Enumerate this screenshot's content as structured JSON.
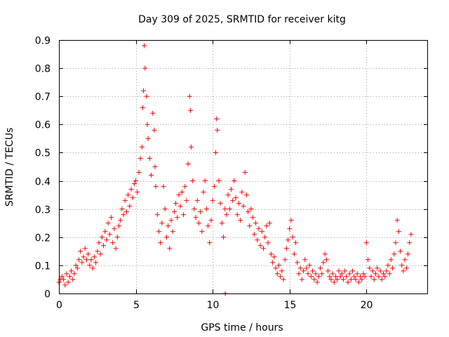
{
  "chart_data": {
    "type": "scatter",
    "title": "Day 309 of 2025, SRMTID for receiver kitg",
    "xlabel": "GPS time / hours",
    "ylabel": "SRMTID / TECUs",
    "xlim": [
      0,
      24
    ],
    "ylim": [
      0,
      0.9
    ],
    "xticks": [
      0,
      5,
      10,
      15,
      20
    ],
    "xtick_labels": [
      "0",
      "5",
      "10",
      "15",
      "20"
    ],
    "yticks": [
      0,
      0.1,
      0.2,
      0.3,
      0.4,
      0.5,
      0.6,
      0.7,
      0.8,
      0.9
    ],
    "ytick_labels": [
      "0",
      "0.1",
      "0.2",
      "0.3",
      "0.4",
      "0.5",
      "0.6",
      "0.7",
      "0.8",
      "0.9"
    ],
    "grid": true,
    "marker": "plus",
    "color": "#ff0000",
    "series": [
      {
        "name": "SRMTID",
        "points": [
          [
            0.0,
            0.04
          ],
          [
            0.1,
            0.05
          ],
          [
            0.2,
            0.06
          ],
          [
            0.3,
            0.05
          ],
          [
            0.4,
            0.03
          ],
          [
            0.5,
            0.07
          ],
          [
            0.6,
            0.04
          ],
          [
            0.7,
            0.06
          ],
          [
            0.8,
            0.08
          ],
          [
            0.9,
            0.05
          ],
          [
            1.0,
            0.07
          ],
          [
            1.1,
            0.1
          ],
          [
            1.2,
            0.09
          ],
          [
            1.3,
            0.12
          ],
          [
            1.4,
            0.15
          ],
          [
            1.5,
            0.11
          ],
          [
            1.6,
            0.13
          ],
          [
            1.7,
            0.16
          ],
          [
            1.8,
            0.12
          ],
          [
            1.9,
            0.14
          ],
          [
            2.0,
            0.1
          ],
          [
            2.1,
            0.12
          ],
          [
            2.2,
            0.09
          ],
          [
            2.3,
            0.13
          ],
          [
            2.4,
            0.11
          ],
          [
            2.5,
            0.15
          ],
          [
            2.6,
            0.18
          ],
          [
            2.7,
            0.14
          ],
          [
            2.8,
            0.2
          ],
          [
            2.9,
            0.17
          ],
          [
            3.0,
            0.22
          ],
          [
            3.1,
            0.19
          ],
          [
            3.2,
            0.25
          ],
          [
            3.3,
            0.21
          ],
          [
            3.4,
            0.27
          ],
          [
            3.5,
            0.18
          ],
          [
            3.6,
            0.23
          ],
          [
            3.7,
            0.16
          ],
          [
            3.8,
            0.2
          ],
          [
            3.9,
            0.24
          ],
          [
            4.0,
            0.26
          ],
          [
            4.1,
            0.3
          ],
          [
            4.2,
            0.28
          ],
          [
            4.3,
            0.33
          ],
          [
            4.4,
            0.29
          ],
          [
            4.5,
            0.35
          ],
          [
            4.6,
            0.31
          ],
          [
            4.7,
            0.37
          ],
          [
            4.8,
            0.34
          ],
          [
            4.9,
            0.39
          ],
          [
            5.0,
            0.4
          ],
          [
            5.1,
            0.36
          ],
          [
            5.2,
            0.43
          ],
          [
            5.3,
            0.48
          ],
          [
            5.4,
            0.52
          ],
          [
            5.45,
            0.66
          ],
          [
            5.5,
            0.72
          ],
          [
            5.55,
            0.88
          ],
          [
            5.6,
            0.8
          ],
          [
            5.7,
            0.7
          ],
          [
            5.75,
            0.6
          ],
          [
            5.8,
            0.55
          ],
          [
            5.9,
            0.48
          ],
          [
            6.0,
            0.42
          ],
          [
            6.1,
            0.64
          ],
          [
            6.2,
            0.58
          ],
          [
            6.25,
            0.45
          ],
          [
            6.3,
            0.38
          ],
          [
            6.4,
            0.28
          ],
          [
            6.5,
            0.22
          ],
          [
            6.6,
            0.18
          ],
          [
            6.7,
            0.25
          ],
          [
            6.8,
            0.38
          ],
          [
            6.9,
            0.3
          ],
          [
            7.0,
            0.2
          ],
          [
            7.1,
            0.24
          ],
          [
            7.2,
            0.16
          ],
          [
            7.3,
            0.26
          ],
          [
            7.4,
            0.22
          ],
          [
            7.5,
            0.29
          ],
          [
            7.6,
            0.32
          ],
          [
            7.7,
            0.27
          ],
          [
            7.8,
            0.35
          ],
          [
            7.9,
            0.31
          ],
          [
            8.0,
            0.36
          ],
          [
            8.1,
            0.28
          ],
          [
            8.2,
            0.38
          ],
          [
            8.3,
            0.33
          ],
          [
            8.4,
            0.46
          ],
          [
            8.5,
            0.7
          ],
          [
            8.55,
            0.65
          ],
          [
            8.6,
            0.52
          ],
          [
            8.7,
            0.4
          ],
          [
            8.8,
            0.3
          ],
          [
            8.9,
            0.27
          ],
          [
            9.0,
            0.33
          ],
          [
            9.1,
            0.25
          ],
          [
            9.2,
            0.29
          ],
          [
            9.3,
            0.22
          ],
          [
            9.4,
            0.36
          ],
          [
            9.5,
            0.4
          ],
          [
            9.6,
            0.3
          ],
          [
            9.7,
            0.24
          ],
          [
            9.8,
            0.18
          ],
          [
            9.9,
            0.26
          ],
          [
            10.0,
            0.33
          ],
          [
            10.1,
            0.38
          ],
          [
            10.2,
            0.5
          ],
          [
            10.25,
            0.62
          ],
          [
            10.3,
            0.58
          ],
          [
            10.4,
            0.4
          ],
          [
            10.5,
            0.32
          ],
          [
            10.6,
            0.25
          ],
          [
            10.7,
            0.2
          ],
          [
            10.8,
            0.3
          ],
          [
            10.82,
            0.0
          ],
          [
            10.9,
            0.28
          ],
          [
            11.0,
            0.35
          ],
          [
            11.1,
            0.3
          ],
          [
            11.2,
            0.37
          ],
          [
            11.3,
            0.33
          ],
          [
            11.4,
            0.4
          ],
          [
            11.5,
            0.34
          ],
          [
            11.6,
            0.28
          ],
          [
            11.7,
            0.32
          ],
          [
            11.8,
            0.26
          ],
          [
            11.9,
            0.36
          ],
          [
            12.0,
            0.31
          ],
          [
            12.1,
            0.43
          ],
          [
            12.2,
            0.35
          ],
          [
            12.3,
            0.29
          ],
          [
            12.4,
            0.24
          ],
          [
            12.5,
            0.3
          ],
          [
            12.6,
            0.27
          ],
          [
            12.7,
            0.21
          ],
          [
            12.8,
            0.25
          ],
          [
            12.9,
            0.19
          ],
          [
            13.0,
            0.23
          ],
          [
            13.1,
            0.17
          ],
          [
            13.2,
            0.22
          ],
          [
            13.3,
            0.16
          ],
          [
            13.4,
            0.2
          ],
          [
            13.5,
            0.24
          ],
          [
            13.6,
            0.18
          ],
          [
            13.7,
            0.25
          ],
          [
            13.8,
            0.14
          ],
          [
            13.9,
            0.11
          ],
          [
            14.0,
            0.13
          ],
          [
            14.1,
            0.09
          ],
          [
            14.2,
            0.07
          ],
          [
            14.3,
            0.1
          ],
          [
            14.4,
            0.06
          ],
          [
            14.5,
            0.08
          ],
          [
            14.6,
            0.05
          ],
          [
            14.7,
            0.12
          ],
          [
            14.8,
            0.16
          ],
          [
            14.9,
            0.19
          ],
          [
            15.0,
            0.23
          ],
          [
            15.1,
            0.26
          ],
          [
            15.2,
            0.2
          ],
          [
            15.3,
            0.14
          ],
          [
            15.4,
            0.18
          ],
          [
            15.5,
            0.11
          ],
          [
            15.6,
            0.07
          ],
          [
            15.7,
            0.09
          ],
          [
            15.8,
            0.05
          ],
          [
            15.9,
            0.08
          ],
          [
            16.0,
            0.12
          ],
          [
            16.1,
            0.09
          ],
          [
            16.2,
            0.07
          ],
          [
            16.3,
            0.1
          ],
          [
            16.4,
            0.06
          ],
          [
            16.5,
            0.08
          ],
          [
            16.6,
            0.05
          ],
          [
            16.7,
            0.07
          ],
          [
            16.8,
            0.04
          ],
          [
            16.9,
            0.06
          ],
          [
            17.0,
            0.09
          ],
          [
            17.1,
            0.07
          ],
          [
            17.2,
            0.11
          ],
          [
            17.3,
            0.14
          ],
          [
            17.4,
            0.12
          ],
          [
            17.5,
            0.08
          ],
          [
            17.6,
            0.06
          ],
          [
            17.7,
            0.05
          ],
          [
            17.8,
            0.07
          ],
          [
            17.9,
            0.04
          ],
          [
            18.0,
            0.06
          ],
          [
            18.1,
            0.05
          ],
          [
            18.2,
            0.08
          ],
          [
            18.3,
            0.06
          ],
          [
            18.4,
            0.07
          ],
          [
            18.5,
            0.05
          ],
          [
            18.6,
            0.08
          ],
          [
            18.7,
            0.06
          ],
          [
            18.8,
            0.04
          ],
          [
            18.9,
            0.07
          ],
          [
            19.0,
            0.05
          ],
          [
            19.1,
            0.08
          ],
          [
            19.2,
            0.06
          ],
          [
            19.3,
            0.05
          ],
          [
            19.4,
            0.07
          ],
          [
            19.5,
            0.04
          ],
          [
            19.6,
            0.06
          ],
          [
            19.7,
            0.05
          ],
          [
            19.8,
            0.07
          ],
          [
            19.9,
            0.06
          ],
          [
            20.0,
            0.18
          ],
          [
            20.1,
            0.12
          ],
          [
            20.2,
            0.09
          ],
          [
            20.3,
            0.06
          ],
          [
            20.4,
            0.08
          ],
          [
            20.5,
            0.05
          ],
          [
            20.6,
            0.07
          ],
          [
            20.7,
            0.09
          ],
          [
            20.8,
            0.06
          ],
          [
            20.9,
            0.08
          ],
          [
            21.0,
            0.05
          ],
          [
            21.1,
            0.07
          ],
          [
            21.2,
            0.06
          ],
          [
            21.3,
            0.08
          ],
          [
            21.4,
            0.1
          ],
          [
            21.5,
            0.07
          ],
          [
            21.6,
            0.12
          ],
          [
            21.7,
            0.09
          ],
          [
            21.8,
            0.14
          ],
          [
            21.9,
            0.18
          ],
          [
            22.0,
            0.26
          ],
          [
            22.1,
            0.22
          ],
          [
            22.2,
            0.15
          ],
          [
            22.3,
            0.1
          ],
          [
            22.4,
            0.08
          ],
          [
            22.5,
            0.12
          ],
          [
            22.6,
            0.09
          ],
          [
            22.7,
            0.14
          ],
          [
            22.8,
            0.18
          ],
          [
            22.9,
            0.21
          ]
        ]
      }
    ]
  }
}
